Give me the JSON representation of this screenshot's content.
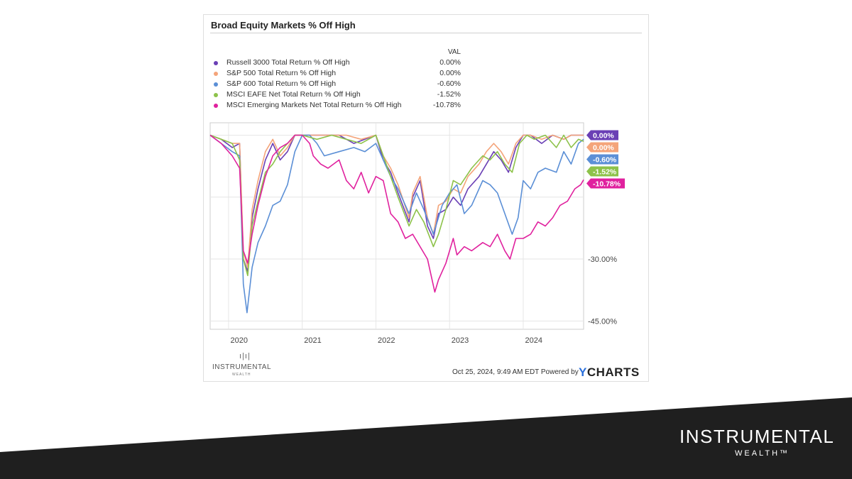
{
  "title": "Broad Equity Markets % Off High",
  "legend": {
    "value_header": "VAL",
    "rows": [
      {
        "label": "Russell 3000 Total Return % Off High",
        "value": "0.00%",
        "color": "#6a3fb5"
      },
      {
        "label": "S&P 500 Total Return % Off High",
        "value": "0.00%",
        "color": "#f4a47a"
      },
      {
        "label": "S&P 600 Total Return % Off High",
        "value": "-0.60%",
        "color": "#5b8fd6"
      },
      {
        "label": "MSCI EAFE Net Total Return % Off High",
        "value": "-1.52%",
        "color": "#8dc24a"
      },
      {
        "label": "MSCI Emerging Markets Net Total Return % Off High",
        "value": "-10.78%",
        "color": "#e0219e"
      }
    ]
  },
  "footer": {
    "timestamp": "Oct 25, 2024, 9:49 AM EDT Powered by",
    "ycharts_y": "Y",
    "ycharts_rest": "CHARTS",
    "logo_word": "INSTRUMENTAL",
    "logo_sub": "WEALTH"
  },
  "brand": {
    "name": "INSTRUMENTAL",
    "sub": "WEALTH™"
  },
  "chart_data": {
    "type": "line",
    "x_tick_labels": [
      "2020",
      "2021",
      "2022",
      "2023",
      "2024"
    ],
    "y_tick_labels": [
      "-30.00%",
      "-45.00%"
    ],
    "xlim": [
      2019.75,
      2024.82
    ],
    "ylim": [
      -47,
      3
    ],
    "grid": true,
    "series": [
      {
        "name": "Russell 3000 Total Return % Off High",
        "color": "#6a3fb5",
        "end_label": "0.00%",
        "points": [
          [
            2019.75,
            0
          ],
          [
            2019.9,
            -1
          ],
          [
            2020.05,
            -3
          ],
          [
            2020.15,
            -2
          ],
          [
            2020.2,
            -30
          ],
          [
            2020.26,
            -33
          ],
          [
            2020.32,
            -20
          ],
          [
            2020.4,
            -13
          ],
          [
            2020.5,
            -6
          ],
          [
            2020.6,
            -2
          ],
          [
            2020.7,
            -6
          ],
          [
            2020.8,
            -4
          ],
          [
            2020.9,
            0
          ],
          [
            2021.0,
            0
          ],
          [
            2021.1,
            0
          ],
          [
            2021.3,
            0
          ],
          [
            2021.5,
            0
          ],
          [
            2021.7,
            -2
          ],
          [
            2021.85,
            -1
          ],
          [
            2022.0,
            0
          ],
          [
            2022.1,
            -6
          ],
          [
            2022.2,
            -9
          ],
          [
            2022.3,
            -14
          ],
          [
            2022.45,
            -21
          ],
          [
            2022.5,
            -15
          ],
          [
            2022.6,
            -11
          ],
          [
            2022.7,
            -22
          ],
          [
            2022.78,
            -25
          ],
          [
            2022.85,
            -19
          ],
          [
            2022.95,
            -18
          ],
          [
            2023.05,
            -15
          ],
          [
            2023.15,
            -17
          ],
          [
            2023.25,
            -13
          ],
          [
            2023.4,
            -10
          ],
          [
            2023.5,
            -7
          ],
          [
            2023.6,
            -4
          ],
          [
            2023.7,
            -6
          ],
          [
            2023.8,
            -9
          ],
          [
            2023.9,
            -3
          ],
          [
            2024.0,
            0
          ],
          [
            2024.1,
            0
          ],
          [
            2024.25,
            -2
          ],
          [
            2024.4,
            0
          ],
          [
            2024.55,
            -1
          ],
          [
            2024.65,
            0
          ],
          [
            2024.82,
            0
          ]
        ]
      },
      {
        "name": "S&P 500 Total Return % Off High",
        "color": "#f4a47a",
        "end_label": "0.00%",
        "points": [
          [
            2019.75,
            0
          ],
          [
            2019.9,
            -1
          ],
          [
            2020.05,
            -2
          ],
          [
            2020.15,
            -2
          ],
          [
            2020.2,
            -28
          ],
          [
            2020.26,
            -32
          ],
          [
            2020.32,
            -18
          ],
          [
            2020.4,
            -11
          ],
          [
            2020.5,
            -4
          ],
          [
            2020.6,
            -1
          ],
          [
            2020.7,
            -5
          ],
          [
            2020.8,
            -3
          ],
          [
            2020.9,
            0
          ],
          [
            2021.0,
            0
          ],
          [
            2021.2,
            0
          ],
          [
            2021.4,
            0
          ],
          [
            2021.6,
            0
          ],
          [
            2021.8,
            -1
          ],
          [
            2022.0,
            0
          ],
          [
            2022.1,
            -5
          ],
          [
            2022.2,
            -8
          ],
          [
            2022.3,
            -12
          ],
          [
            2022.45,
            -20
          ],
          [
            2022.5,
            -14
          ],
          [
            2022.6,
            -10
          ],
          [
            2022.7,
            -20
          ],
          [
            2022.78,
            -24
          ],
          [
            2022.85,
            -17
          ],
          [
            2022.95,
            -16
          ],
          [
            2023.05,
            -13
          ],
          [
            2023.15,
            -14
          ],
          [
            2023.25,
            -10
          ],
          [
            2023.4,
            -7
          ],
          [
            2023.5,
            -4
          ],
          [
            2023.6,
            -2
          ],
          [
            2023.7,
            -4
          ],
          [
            2023.8,
            -7
          ],
          [
            2023.9,
            -2
          ],
          [
            2024.0,
            0
          ],
          [
            2024.1,
            0
          ],
          [
            2024.25,
            -1
          ],
          [
            2024.4,
            0
          ],
          [
            2024.55,
            -1
          ],
          [
            2024.65,
            0
          ],
          [
            2024.82,
            0
          ]
        ]
      },
      {
        "name": "S&P 600 Total Return % Off High",
        "color": "#5b8fd6",
        "end_label": "-0.60%",
        "points": [
          [
            2019.75,
            0
          ],
          [
            2019.9,
            -2
          ],
          [
            2020.05,
            -4
          ],
          [
            2020.15,
            -5
          ],
          [
            2020.2,
            -36
          ],
          [
            2020.25,
            -43
          ],
          [
            2020.32,
            -32
          ],
          [
            2020.4,
            -26
          ],
          [
            2020.5,
            -22
          ],
          [
            2020.6,
            -17
          ],
          [
            2020.7,
            -16
          ],
          [
            2020.8,
            -12
          ],
          [
            2020.9,
            -4
          ],
          [
            2021.0,
            0
          ],
          [
            2021.1,
            0
          ],
          [
            2021.2,
            -2
          ],
          [
            2021.3,
            -5
          ],
          [
            2021.5,
            -4
          ],
          [
            2021.7,
            -3
          ],
          [
            2021.85,
            -4
          ],
          [
            2022.0,
            -2
          ],
          [
            2022.1,
            -6
          ],
          [
            2022.2,
            -10
          ],
          [
            2022.3,
            -13
          ],
          [
            2022.45,
            -19
          ],
          [
            2022.55,
            -14
          ],
          [
            2022.65,
            -18
          ],
          [
            2022.78,
            -24
          ],
          [
            2022.9,
            -17
          ],
          [
            2023.0,
            -14
          ],
          [
            2023.1,
            -12
          ],
          [
            2023.2,
            -19
          ],
          [
            2023.3,
            -17
          ],
          [
            2023.45,
            -11
          ],
          [
            2023.55,
            -12
          ],
          [
            2023.65,
            -14
          ],
          [
            2023.75,
            -19
          ],
          [
            2023.85,
            -24
          ],
          [
            2023.93,
            -20
          ],
          [
            2024.0,
            -11
          ],
          [
            2024.1,
            -13
          ],
          [
            2024.2,
            -9
          ],
          [
            2024.3,
            -8
          ],
          [
            2024.45,
            -9
          ],
          [
            2024.55,
            -4
          ],
          [
            2024.65,
            -7
          ],
          [
            2024.75,
            -2
          ],
          [
            2024.82,
            -1
          ]
        ]
      },
      {
        "name": "MSCI EAFE Net Total Return % Off High",
        "color": "#8dc24a",
        "end_label": "-1.52%",
        "points": [
          [
            2019.75,
            0
          ],
          [
            2019.9,
            -1
          ],
          [
            2020.05,
            -2
          ],
          [
            2020.15,
            -6
          ],
          [
            2020.2,
            -30
          ],
          [
            2020.26,
            -34
          ],
          [
            2020.32,
            -22
          ],
          [
            2020.4,
            -16
          ],
          [
            2020.5,
            -9
          ],
          [
            2020.6,
            -7
          ],
          [
            2020.7,
            -4
          ],
          [
            2020.8,
            -2
          ],
          [
            2020.9,
            0
          ],
          [
            2021.0,
            0
          ],
          [
            2021.2,
            -1
          ],
          [
            2021.4,
            0
          ],
          [
            2021.6,
            -1
          ],
          [
            2021.8,
            -2
          ],
          [
            2022.0,
            0
          ],
          [
            2022.1,
            -5
          ],
          [
            2022.2,
            -10
          ],
          [
            2022.3,
            -15
          ],
          [
            2022.45,
            -22
          ],
          [
            2022.55,
            -18
          ],
          [
            2022.65,
            -21
          ],
          [
            2022.78,
            -27
          ],
          [
            2022.85,
            -24
          ],
          [
            2022.95,
            -18
          ],
          [
            2023.05,
            -11
          ],
          [
            2023.15,
            -12
          ],
          [
            2023.3,
            -8
          ],
          [
            2023.45,
            -5
          ],
          [
            2023.55,
            -6
          ],
          [
            2023.65,
            -4
          ],
          [
            2023.75,
            -7
          ],
          [
            2023.85,
            -9
          ],
          [
            2023.95,
            -2
          ],
          [
            2024.05,
            0
          ],
          [
            2024.15,
            -1
          ],
          [
            2024.3,
            0
          ],
          [
            2024.45,
            -3
          ],
          [
            2024.55,
            0
          ],
          [
            2024.65,
            -3
          ],
          [
            2024.75,
            -1
          ],
          [
            2024.82,
            -1.5
          ]
        ]
      },
      {
        "name": "MSCI Emerging Markets Net Total Return % Off High",
        "color": "#e0219e",
        "end_label": "-10.78%",
        "points": [
          [
            2019.75,
            0
          ],
          [
            2019.9,
            -2
          ],
          [
            2020.05,
            -5
          ],
          [
            2020.15,
            -8
          ],
          [
            2020.2,
            -28
          ],
          [
            2020.26,
            -31
          ],
          [
            2020.32,
            -24
          ],
          [
            2020.4,
            -17
          ],
          [
            2020.5,
            -10
          ],
          [
            2020.6,
            -5
          ],
          [
            2020.7,
            -3
          ],
          [
            2020.8,
            -2
          ],
          [
            2020.9,
            0
          ],
          [
            2021.0,
            0
          ],
          [
            2021.1,
            -2
          ],
          [
            2021.15,
            -5
          ],
          [
            2021.25,
            -7
          ],
          [
            2021.35,
            -8
          ],
          [
            2021.5,
            -6
          ],
          [
            2021.6,
            -11
          ],
          [
            2021.7,
            -13
          ],
          [
            2021.8,
            -9
          ],
          [
            2021.9,
            -14
          ],
          [
            2022.0,
            -10
          ],
          [
            2022.1,
            -11
          ],
          [
            2022.2,
            -19
          ],
          [
            2022.3,
            -21
          ],
          [
            2022.4,
            -25
          ],
          [
            2022.5,
            -24
          ],
          [
            2022.6,
            -27
          ],
          [
            2022.7,
            -30
          ],
          [
            2022.8,
            -38
          ],
          [
            2022.85,
            -35
          ],
          [
            2022.95,
            -31
          ],
          [
            2023.05,
            -25
          ],
          [
            2023.1,
            -29
          ],
          [
            2023.2,
            -27
          ],
          [
            2023.3,
            -28
          ],
          [
            2023.45,
            -26
          ],
          [
            2023.55,
            -27
          ],
          [
            2023.65,
            -24
          ],
          [
            2023.75,
            -28
          ],
          [
            2023.82,
            -30
          ],
          [
            2023.9,
            -25
          ],
          [
            2024.0,
            -25
          ],
          [
            2024.1,
            -24
          ],
          [
            2024.2,
            -21
          ],
          [
            2024.3,
            -22
          ],
          [
            2024.4,
            -20
          ],
          [
            2024.5,
            -17
          ],
          [
            2024.6,
            -16
          ],
          [
            2024.7,
            -13
          ],
          [
            2024.78,
            -12
          ],
          [
            2024.82,
            -10.8
          ]
        ]
      }
    ]
  }
}
